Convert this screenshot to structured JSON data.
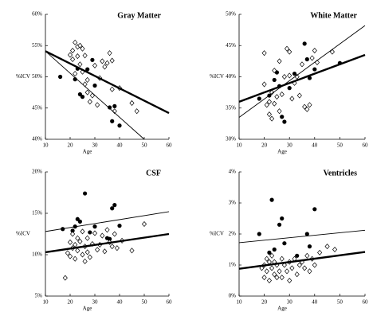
{
  "chart_data": [
    {
      "type": "scatter",
      "title": "Gray Matter",
      "xlabel": "Age",
      "ylabel": "%ICV",
      "xlim": [
        10,
        60
      ],
      "ylim": [
        40,
        60
      ],
      "xticks": [
        10,
        20,
        30,
        40,
        50,
        60
      ],
      "yticks": [
        {
          "value": 40,
          "label": "40%"
        },
        {
          "value": 45,
          "label": "45%"
        },
        {
          "value": 50,
          "label": "50%"
        },
        {
          "value": 55,
          "label": "55%"
        },
        {
          "value": 60,
          "label": "60%"
        }
      ],
      "series": [
        {
          "marker": "circle",
          "color": "#000000",
          "x": [
            16,
            22,
            23,
            24,
            25,
            27,
            29,
            30,
            36,
            37,
            38,
            40
          ],
          "values": [
            50,
            49.6,
            51.3,
            47.2,
            46.8,
            51.2,
            52.7,
            48.6,
            45.1,
            42.9,
            45.3,
            42.2
          ]
        },
        {
          "marker": "diamond",
          "color": "#000000",
          "x": [
            20,
            21,
            21,
            22,
            22,
            23,
            23,
            24,
            24,
            25,
            25,
            26,
            26,
            27,
            27,
            28,
            29,
            30,
            31,
            32,
            33,
            34,
            35,
            36,
            37,
            37,
            38,
            40,
            45,
            47
          ],
          "values": [
            53.5,
            54.2,
            52.8,
            55.5,
            50.5,
            54.8,
            53.3,
            55,
            52,
            54.5,
            50.8,
            48.8,
            53.4,
            47.5,
            49.5,
            46,
            47,
            51.8,
            45.5,
            49.8,
            52.5,
            51.6,
            52.2,
            53.8,
            52.6,
            48,
            44.5,
            48.2,
            45.8,
            44.5
          ]
        },
        {
          "marker": "line",
          "color": "#000000",
          "width": 2.4,
          "x": [
            10,
            60
          ],
          "values": [
            54.1,
            44.2
          ]
        },
        {
          "marker": "line",
          "color": "#000000",
          "width": 0.9,
          "x": [
            10,
            50
          ],
          "values": [
            54.1,
            40
          ]
        }
      ]
    },
    {
      "type": "scatter",
      "title": "White Matter",
      "xlabel": "Age",
      "ylabel": "%ICV",
      "xlim": [
        10,
        60
      ],
      "ylim": [
        30,
        50
      ],
      "xticks": [
        10,
        20,
        30,
        40,
        50,
        60
      ],
      "yticks": [
        {
          "value": 30,
          "label": "30%"
        },
        {
          "value": 35,
          "label": "35%"
        },
        {
          "value": 40,
          "label": "40%"
        },
        {
          "value": 45,
          "label": "45%"
        },
        {
          "value": 50,
          "label": "50%"
        }
      ],
      "series": [
        {
          "marker": "circle",
          "color": "#000000",
          "x": [
            18,
            22,
            24,
            25,
            26,
            27,
            28,
            30,
            32,
            36,
            37,
            38,
            40,
            50
          ],
          "values": [
            36.5,
            37,
            39.5,
            40.7,
            38.5,
            33.6,
            32.8,
            38.2,
            40.5,
            45.3,
            42.8,
            39.8,
            41.2,
            42.2
          ]
        },
        {
          "marker": "diamond",
          "color": "#000000",
          "x": [
            20,
            20,
            21,
            22,
            22,
            23,
            23,
            24,
            24,
            25,
            26,
            26,
            27,
            28,
            29,
            30,
            30,
            31,
            32,
            33,
            34,
            35,
            36,
            37,
            38,
            39,
            40,
            41,
            47
          ],
          "values": [
            38.8,
            43.8,
            35.5,
            34,
            36,
            33.3,
            37.5,
            35.7,
            41,
            36.8,
            34.5,
            42.5,
            37.2,
            40,
            44.5,
            44,
            40.2,
            36.5,
            39,
            40,
            37,
            42,
            35.2,
            34.8,
            35.5,
            43,
            44.2,
            42.3,
            44
          ]
        },
        {
          "marker": "line",
          "color": "#000000",
          "width": 2.4,
          "x": [
            10,
            60
          ],
          "values": [
            36,
            43.5
          ]
        },
        {
          "marker": "line",
          "color": "#000000",
          "width": 0.9,
          "x": [
            10,
            60
          ],
          "values": [
            33.5,
            48.2
          ]
        }
      ]
    },
    {
      "type": "scatter",
      "title": "CSF",
      "xlabel": "Age",
      "ylabel": "%ICV",
      "xlim": [
        10,
        60
      ],
      "ylim": [
        5,
        20
      ],
      "xticks": [
        10,
        20,
        30,
        40,
        50,
        60
      ],
      "yticks": [
        {
          "value": 5,
          "label": "5%"
        },
        {
          "value": 10,
          "label": "10%"
        },
        {
          "value": 15,
          "label": "15%"
        },
        {
          "value": 20,
          "label": "20%"
        }
      ],
      "series": [
        {
          "marker": "circle",
          "color": "#000000",
          "x": [
            17,
            21,
            22,
            23,
            24,
            26,
            28,
            30,
            35,
            36,
            37,
            38,
            40
          ],
          "values": [
            13.1,
            12.9,
            13.4,
            14.3,
            14,
            17.4,
            12.7,
            13.4,
            12,
            11.9,
            15.6,
            16,
            13.5
          ]
        },
        {
          "marker": "diamond",
          "color": "#000000",
          "x": [
            18,
            19,
            20,
            20,
            21,
            21,
            22,
            22,
            23,
            23,
            24,
            25,
            25,
            26,
            26,
            27,
            27,
            28,
            29,
            30,
            31,
            32,
            33,
            34,
            35,
            36,
            37,
            38,
            39,
            41,
            45,
            50
          ],
          "values": [
            7.2,
            10.2,
            9.8,
            11.5,
            10.8,
            12.5,
            9.5,
            11.2,
            10.5,
            12,
            11.6,
            12.8,
            10,
            9.2,
            11,
            12,
            10.3,
            9.7,
            11.3,
            12.6,
            10.6,
            11.2,
            12.3,
            10.4,
            13,
            11.5,
            11,
            12.5,
            10.8,
            11.7,
            10.5,
            13.7
          ]
        },
        {
          "marker": "line",
          "color": "#000000",
          "width": 2.4,
          "x": [
            10,
            60
          ],
          "values": [
            10.3,
            12.5
          ]
        },
        {
          "marker": "line",
          "color": "#000000",
          "width": 0.9,
          "x": [
            10,
            60
          ],
          "values": [
            12.8,
            15.2
          ]
        }
      ]
    },
    {
      "type": "scatter",
      "title": "Ventricles",
      "xlabel": "Age",
      "ylabel": "%ICV",
      "xlim": [
        10,
        60
      ],
      "ylim": [
        0,
        4
      ],
      "xticks": [
        10,
        20,
        30,
        40,
        50,
        60
      ],
      "yticks": [
        {
          "value": 0,
          "label": "0%"
        },
        {
          "value": 1,
          "label": "1%"
        },
        {
          "value": 2,
          "label": "2%"
        },
        {
          "value": 3,
          "label": "3%"
        },
        {
          "value": 4,
          "label": "4%"
        }
      ],
      "series": [
        {
          "marker": "circle",
          "color": "#000000",
          "x": [
            18,
            22,
            23,
            24,
            26,
            27,
            28,
            33,
            37,
            38,
            40
          ],
          "values": [
            2,
            1.4,
            3.1,
            1.5,
            2.3,
            2.5,
            1.7,
            1.3,
            2,
            1.6,
            2.8
          ]
        },
        {
          "marker": "diamond",
          "color": "#000000",
          "x": [
            19,
            20,
            20,
            21,
            21,
            22,
            22,
            23,
            23,
            24,
            24,
            25,
            25,
            26,
            27,
            27,
            28,
            29,
            30,
            30,
            31,
            32,
            33,
            34,
            35,
            36,
            37,
            38,
            39,
            40,
            42,
            45,
            48
          ],
          "values": [
            0.9,
            1,
            0.6,
            1.2,
            0.8,
            1.1,
            0.5,
            0.9,
            1.3,
            0.7,
            1.1,
            1,
            0.6,
            0.8,
            1.2,
            0.6,
            1,
            0.8,
            1.1,
            0.5,
            0.9,
            1.2,
            0.7,
            1,
            1.1,
            0.9,
            1.3,
            0.8,
            1.2,
            1,
            1.4,
            1.6,
            1.5
          ]
        },
        {
          "marker": "line",
          "color": "#000000",
          "width": 2.4,
          "x": [
            10,
            60
          ],
          "values": [
            0.88,
            1.42
          ]
        },
        {
          "marker": "line",
          "color": "#000000",
          "width": 0.9,
          "x": [
            10,
            60
          ],
          "values": [
            1.72,
            2.12
          ]
        }
      ]
    }
  ]
}
